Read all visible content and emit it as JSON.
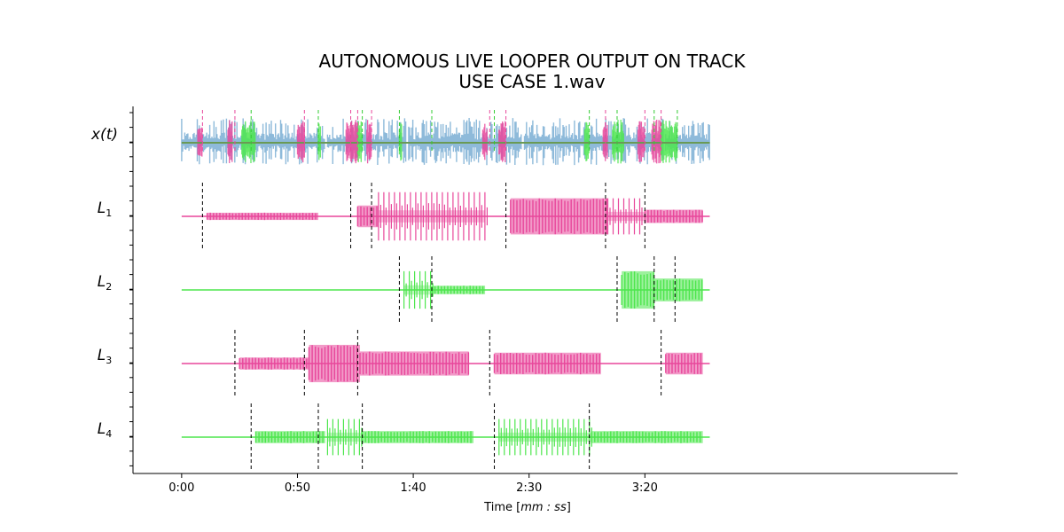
{
  "chart_data": {
    "type": "line",
    "title": "AUTONOMOUS LIVE LOOPER OUTPUT ON TRACK",
    "subtitle": "USE CASE 1.wav",
    "xlabel": "Time [mm : ss]",
    "xlim_seconds": [
      -21,
      335
    ],
    "x_ticks": [
      {
        "value": 0,
        "label": "0:00"
      },
      {
        "value": 50,
        "label": "0:50"
      },
      {
        "value": 100,
        "label": "1:40"
      },
      {
        "value": 150,
        "label": "2:30"
      },
      {
        "value": 200,
        "label": "3:20"
      }
    ],
    "track_end_seconds": 228,
    "grid": false,
    "colors": {
      "input": "#7aaed4",
      "pink": "#e8479b",
      "green": "#4de64d",
      "marker_pink": "#e8479b",
      "marker_green": "#33cc33",
      "loop_marker": "#000000",
      "input_line": "#6a9a55"
    },
    "series": [
      {
        "name": "x(t)",
        "kind": "input",
        "input_segments": [
          [
            0,
            62
          ],
          [
            63,
            97
          ],
          [
            98,
            147
          ],
          [
            148,
            208
          ],
          [
            209,
            228
          ]
        ],
        "overlay_regions": [
          {
            "range": [
              7,
              9
            ],
            "color": "pink"
          },
          {
            "range": [
              20,
              22
            ],
            "color": "pink"
          },
          {
            "range": [
              26,
              32
            ],
            "color": "green"
          },
          {
            "range": [
              50,
              53
            ],
            "color": "pink"
          },
          {
            "range": [
              59,
              60
            ],
            "color": "green"
          },
          {
            "range": [
              71,
              76
            ],
            "color": "pink"
          },
          {
            "range": [
              76,
              78
            ],
            "color": "green"
          },
          {
            "range": [
              80,
              82
            ],
            "color": "pink"
          },
          {
            "range": [
              94,
              95
            ],
            "color": "green"
          },
          {
            "range": [
              130,
              132
            ],
            "color": "pink"
          },
          {
            "range": [
              137,
              140
            ],
            "color": "pink"
          },
          {
            "range": [
              174,
              176
            ],
            "color": "green"
          },
          {
            "range": [
              182,
              184
            ],
            "color": "pink"
          },
          {
            "range": [
              186,
              191
            ],
            "color": "green"
          },
          {
            "range": [
              197,
              200
            ],
            "color": "pink"
          },
          {
            "range": [
              203,
              207
            ],
            "color": "pink"
          },
          {
            "range": [
              207,
              214
            ],
            "color": "green"
          }
        ],
        "markers": [
          {
            "t": 9,
            "color": "pink"
          },
          {
            "t": 23,
            "color": "pink"
          },
          {
            "t": 30,
            "color": "green"
          },
          {
            "t": 53,
            "color": "pink"
          },
          {
            "t": 59,
            "color": "green"
          },
          {
            "t": 73,
            "color": "pink"
          },
          {
            "t": 76,
            "color": "pink"
          },
          {
            "t": 78,
            "color": "green"
          },
          {
            "t": 82,
            "color": "pink"
          },
          {
            "t": 94,
            "color": "green"
          },
          {
            "t": 108,
            "color": "green"
          },
          {
            "t": 133,
            "color": "pink"
          },
          {
            "t": 135,
            "color": "green"
          },
          {
            "t": 140,
            "color": "pink"
          },
          {
            "t": 176,
            "color": "green"
          },
          {
            "t": 183,
            "color": "pink"
          },
          {
            "t": 188,
            "color": "green"
          },
          {
            "t": 200,
            "color": "pink"
          },
          {
            "t": 204,
            "color": "green"
          },
          {
            "t": 207,
            "color": "pink"
          },
          {
            "t": 214,
            "color": "green"
          }
        ]
      },
      {
        "name": "L1",
        "kind": "loop",
        "color": "pink",
        "loop_markers": [
          9,
          73,
          82,
          140,
          183,
          200
        ],
        "segments": [
          {
            "start": 11,
            "end": 59,
            "amp": 0.12,
            "style": "dense"
          },
          {
            "start": 76,
            "end": 85,
            "amp": 0.36,
            "style": "dense"
          },
          {
            "start": 85,
            "end": 131,
            "amp": 0.8,
            "style": "spiky"
          },
          {
            "start": 142,
            "end": 184,
            "amp": 0.6,
            "style": "dense"
          },
          {
            "start": 184,
            "end": 200,
            "amp": 0.6,
            "style": "spiky"
          },
          {
            "start": 200,
            "end": 225,
            "amp": 0.22,
            "style": "dense"
          }
        ]
      },
      {
        "name": "L2",
        "kind": "loop",
        "color": "green",
        "loop_markers": [
          94,
          108,
          188,
          204,
          213
        ],
        "segments": [
          {
            "start": 96,
            "end": 108,
            "amp": 0.62,
            "style": "spiky"
          },
          {
            "start": 108,
            "end": 131,
            "amp": 0.14,
            "style": "dense"
          },
          {
            "start": 190,
            "end": 204,
            "amp": 0.62,
            "style": "dense"
          },
          {
            "start": 204,
            "end": 225,
            "amp": 0.38,
            "style": "dense"
          }
        ]
      },
      {
        "name": "L3",
        "kind": "loop",
        "color": "pink",
        "loop_markers": [
          23,
          53,
          76,
          133,
          207
        ],
        "segments": [
          {
            "start": 25,
            "end": 55,
            "amp": 0.2,
            "style": "dense"
          },
          {
            "start": 55,
            "end": 77,
            "amp": 0.62,
            "style": "dense"
          },
          {
            "start": 77,
            "end": 124,
            "amp": 0.4,
            "style": "dense"
          },
          {
            "start": 135,
            "end": 181,
            "amp": 0.36,
            "style": "dense"
          },
          {
            "start": 209,
            "end": 225,
            "amp": 0.36,
            "style": "dense"
          }
        ]
      },
      {
        "name": "L4",
        "kind": "loop",
        "color": "green",
        "loop_markers": [
          30,
          59,
          78,
          135,
          176
        ],
        "segments": [
          {
            "start": 32,
            "end": 62,
            "amp": 0.2,
            "style": "dense"
          },
          {
            "start": 63,
            "end": 78,
            "amp": 0.6,
            "style": "spiky"
          },
          {
            "start": 78,
            "end": 126,
            "amp": 0.2,
            "style": "dense"
          },
          {
            "start": 137,
            "end": 177,
            "amp": 0.6,
            "style": "spiky"
          },
          {
            "start": 177,
            "end": 225,
            "amp": 0.2,
            "style": "dense"
          }
        ]
      }
    ]
  }
}
